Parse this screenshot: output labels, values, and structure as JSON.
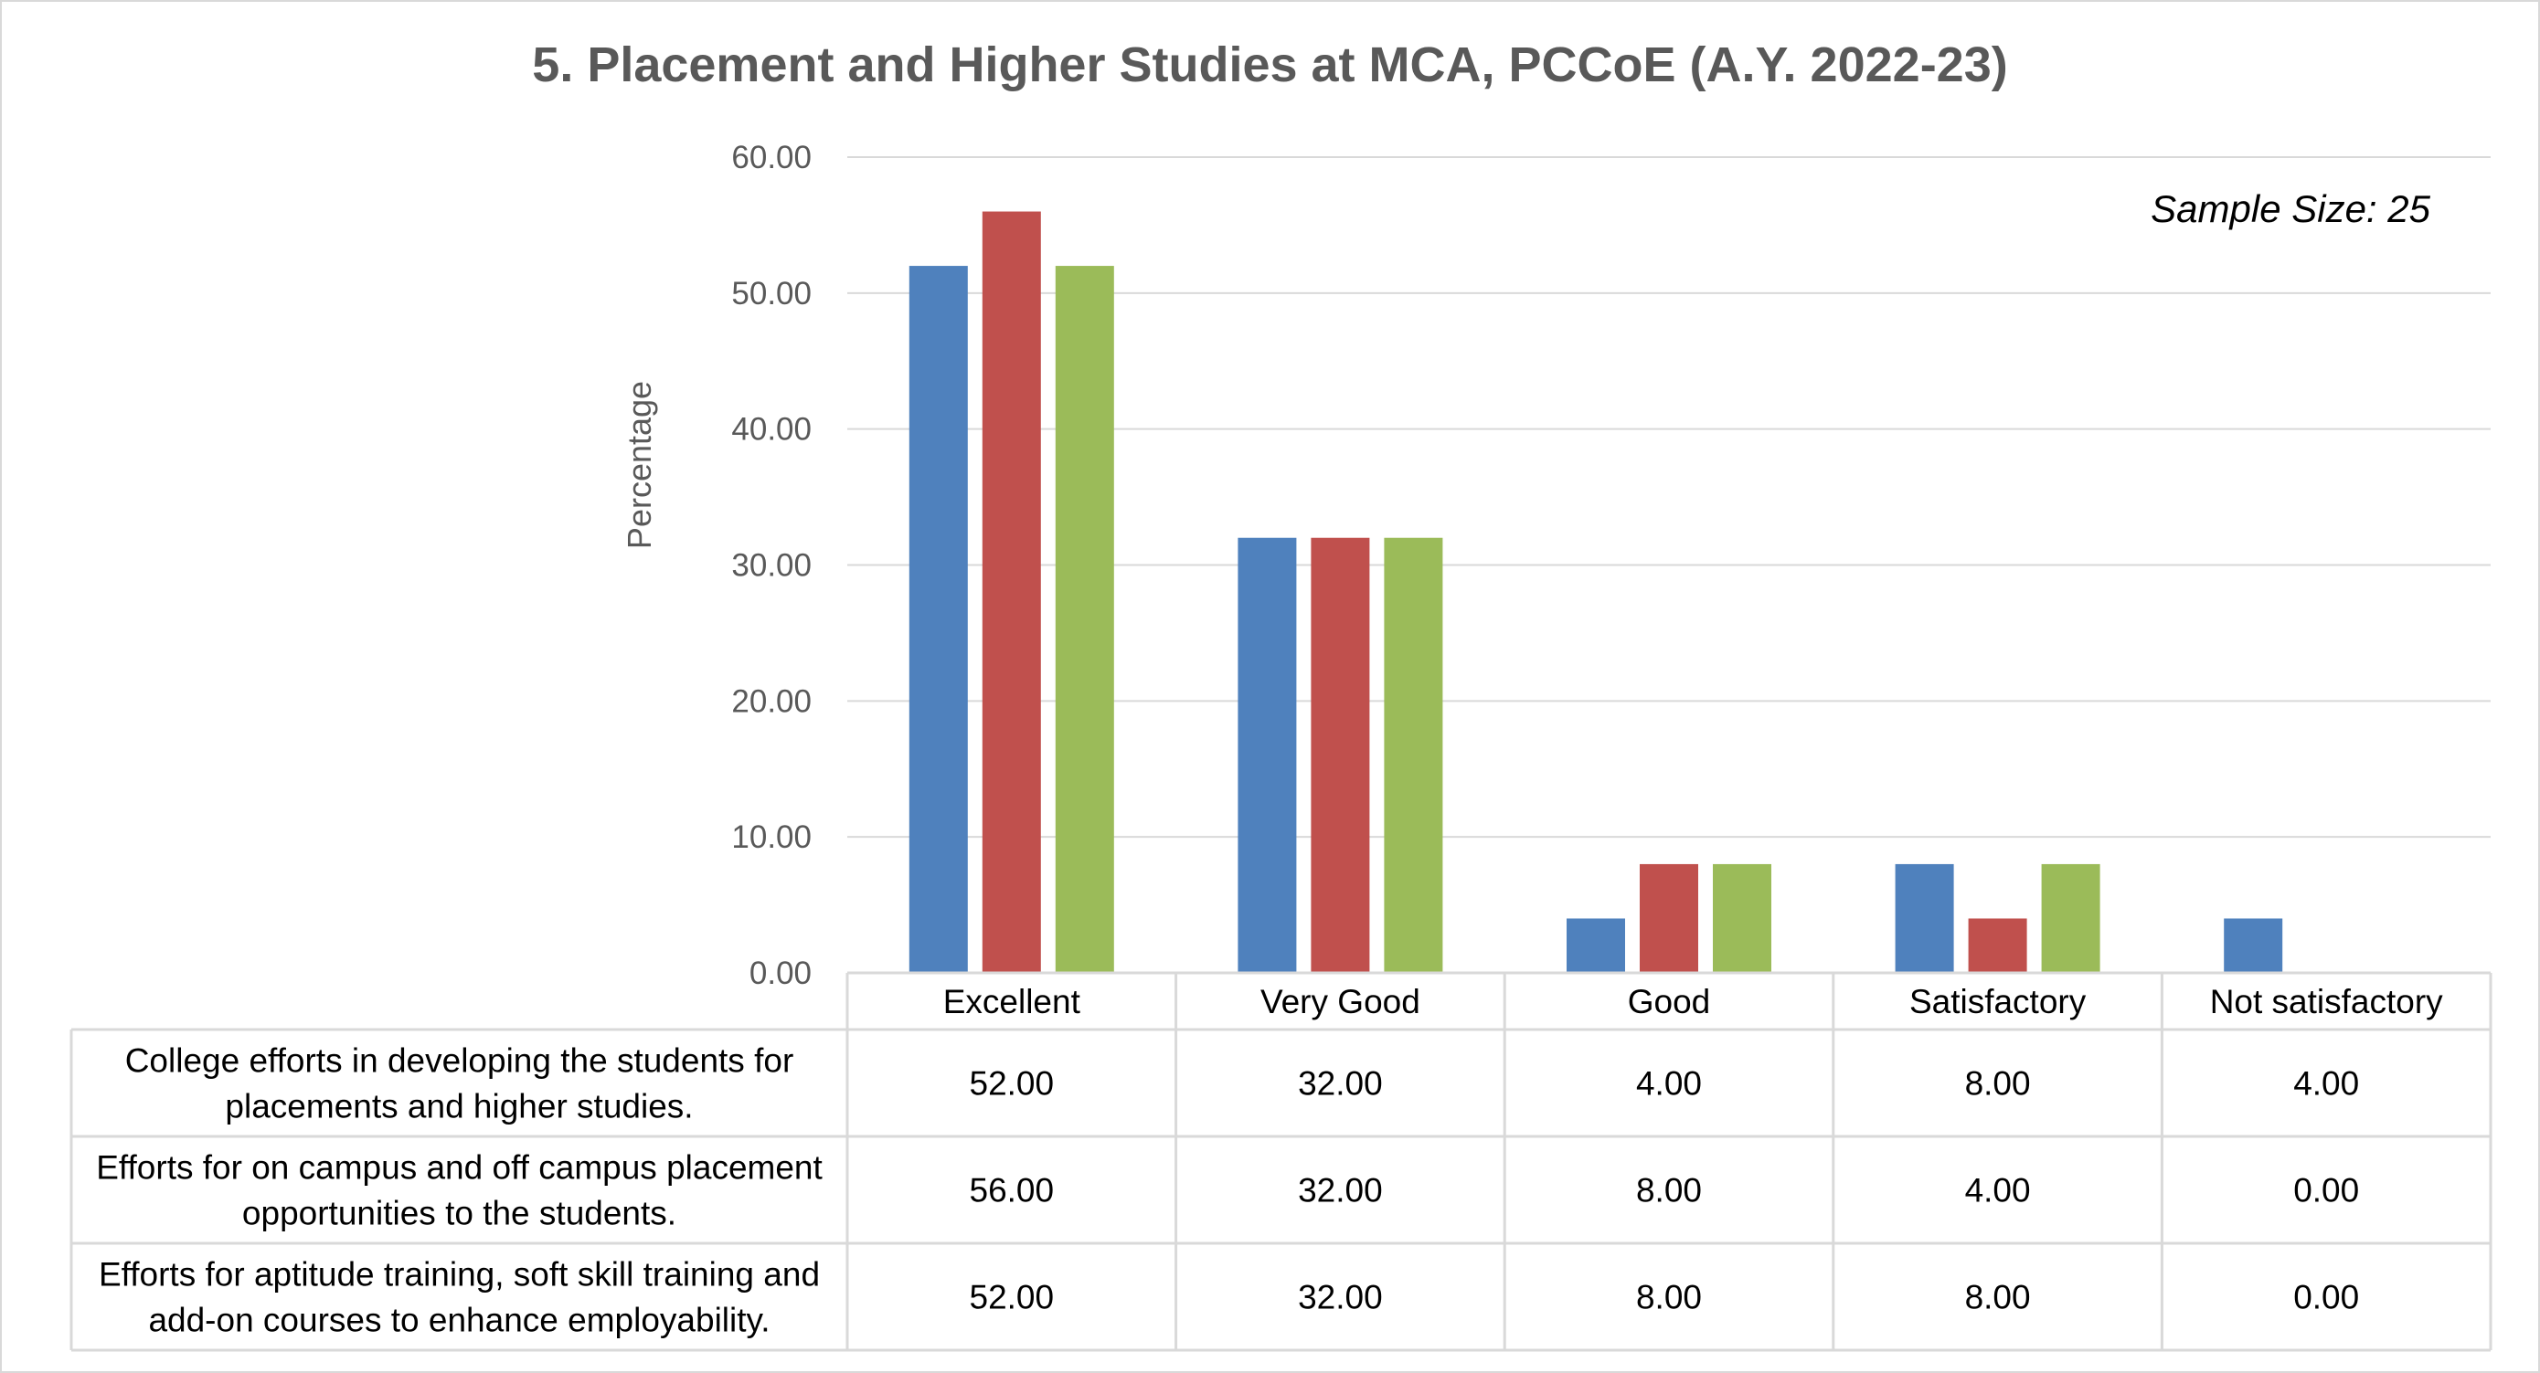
{
  "chart_data": {
    "type": "bar",
    "title": "5. Placement and Higher Studies at MCA, PCCoE (A.Y. 2022-23)",
    "annotation": "Sample Size: 25",
    "xlabel": "",
    "ylabel": "Percentage",
    "ylim": [
      0,
      60
    ],
    "yticks": [
      "0.00",
      "10.00",
      "20.00",
      "30.00",
      "40.00",
      "50.00",
      "60.00"
    ],
    "grid": true,
    "legend": "data-table",
    "categories": [
      "Excellent",
      "Very Good",
      "Good",
      "Satisfactory",
      "Not satisfactory"
    ],
    "series": [
      {
        "name": "College efforts in developing the students for placements and higher studies.",
        "lines": [
          "College efforts in developing the students for",
          "placements and higher studies."
        ],
        "color": "#4F81BD",
        "values": [
          52,
          32,
          4,
          8,
          4
        ],
        "labels": [
          "52.00",
          "32.00",
          "4.00",
          "8.00",
          "4.00"
        ]
      },
      {
        "name": "Efforts for on campus and off campus placement opportunities to the students.",
        "lines": [
          "Efforts for on campus and off campus placement",
          "opportunities to the students."
        ],
        "color": "#C0504D",
        "values": [
          56,
          32,
          8,
          4,
          0
        ],
        "labels": [
          "56.00",
          "32.00",
          "8.00",
          "4.00",
          "0.00"
        ]
      },
      {
        "name": "Efforts for aptitude training, soft skill training and add-on courses to enhance employability.",
        "lines": [
          "Efforts for aptitude training, soft skill training and",
          "add-on courses to enhance employability."
        ],
        "color": "#9BBB59",
        "values": [
          52,
          32,
          8,
          8,
          0
        ],
        "labels": [
          "52.00",
          "32.00",
          "8.00",
          "8.00",
          "0.00"
        ]
      }
    ]
  }
}
